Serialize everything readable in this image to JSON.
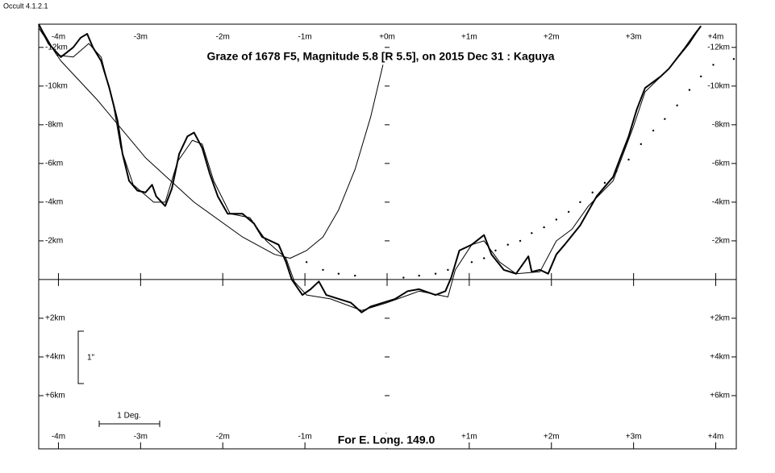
{
  "app_title": "Occult 4.1.2.1",
  "chart_data": {
    "type": "line",
    "title": "Graze of  1678 F5,  Magnitude 5.8  [R 5.5],  on 2015 Dec 31  :  Kaguya",
    "footer": "For E. Long. 149.0",
    "scale_arcsec_label": "1\"",
    "scale_degree_label": "1 Deg.",
    "xlim": [
      -4.24,
      4.25
    ],
    "ylim": [
      -13.2,
      8.75
    ],
    "y_inverted": true,
    "xticks": [
      {
        "value": -4,
        "label": "-4m"
      },
      {
        "value": -3,
        "label": "-3m"
      },
      {
        "value": -2,
        "label": "-2m"
      },
      {
        "value": -1,
        "label": "-1m"
      },
      {
        "value": 0,
        "label": "+0m"
      },
      {
        "value": 1,
        "label": "+1m"
      },
      {
        "value": 2,
        "label": "+2m"
      },
      {
        "value": 3,
        "label": "+3m"
      },
      {
        "value": 4,
        "label": "+4m"
      }
    ],
    "yticks": [
      {
        "value": -12,
        "label": "-12km"
      },
      {
        "value": -10,
        "label": "-10km"
      },
      {
        "value": -8,
        "label": "-8km"
      },
      {
        "value": -6,
        "label": "-6km"
      },
      {
        "value": -4,
        "label": "-4km"
      },
      {
        "value": -2,
        "label": "-2km"
      },
      {
        "value": 2,
        "label": "+2km"
      },
      {
        "value": 4,
        "label": "+4km"
      },
      {
        "value": 6,
        "label": "+6km"
      }
    ],
    "series": [
      {
        "color": "#000000",
        "line_width": 2,
        "x": [
          -4.24,
          -4.12,
          -3.97,
          -3.82,
          -3.73,
          -3.65,
          -3.58,
          -3.48,
          -3.38,
          -3.28,
          -3.22,
          -3.14,
          -3.04,
          -2.94,
          -2.86,
          -2.81,
          -2.7,
          -2.62,
          -2.53,
          -2.43,
          -2.35,
          -2.25,
          -2.16,
          -2.06,
          -1.94,
          -1.76,
          -1.62,
          -1.52,
          -1.32,
          -1.23,
          -1.16,
          -1.03,
          -0.93,
          -0.83,
          -0.74,
          -0.59,
          -0.44,
          -0.31,
          -0.2,
          -0.05,
          0.1,
          0.25,
          0.39,
          0.59,
          0.71,
          0.78,
          0.88,
          1.03,
          1.18,
          1.27,
          1.42,
          1.57,
          1.67,
          1.72,
          1.76,
          1.86,
          1.96,
          2.06,
          2.16,
          2.35,
          2.55,
          2.75,
          2.84,
          2.94,
          3.04,
          3.14,
          3.33,
          3.43,
          3.63,
          3.73,
          3.82
        ],
        "values": [
          -13.2,
          -12.2,
          -11.5,
          -12.0,
          -12.5,
          -12.7,
          -12.0,
          -11.3,
          -9.9,
          -8.2,
          -6.5,
          -5.1,
          -4.6,
          -4.5,
          -4.9,
          -4.3,
          -3.8,
          -4.7,
          -6.5,
          -7.4,
          -7.6,
          -6.8,
          -5.5,
          -4.3,
          -3.4,
          -3.4,
          -2.9,
          -2.2,
          -1.8,
          -0.9,
          0,
          0.8,
          0.5,
          0.1,
          0.8,
          1.0,
          1.2,
          1.7,
          1.4,
          1.2,
          1.0,
          0.6,
          0.5,
          0.8,
          0.6,
          -0.1,
          -1.5,
          -1.8,
          -2.3,
          -1.3,
          -0.5,
          -0.3,
          -0.9,
          -1.2,
          -0.4,
          -0.5,
          -0.3,
          -1.3,
          -1.8,
          -2.8,
          -4.3,
          -5.3,
          -6.3,
          -7.4,
          -8.8,
          -9.9,
          -10.5,
          -10.9,
          -12.0,
          -12.6,
          -13.1
        ]
      },
      {
        "color": "#000000",
        "line_width": 1,
        "x": [
          -4.24,
          -4.02,
          -3.82,
          -3.63,
          -3.48,
          -3.33,
          -3.24,
          -3.09,
          -2.84,
          -2.7,
          -2.55,
          -2.37,
          -2.25,
          -2.11,
          -1.91,
          -1.67,
          -1.47,
          -1.23,
          -1.13,
          -0.98,
          -0.69,
          -0.31,
          0,
          0.39,
          0.74,
          0.83,
          1.03,
          1.18,
          1.37,
          1.57,
          1.86,
          2.06,
          2.25,
          2.45,
          2.75,
          2.99,
          3.14,
          3.43,
          3.68,
          3.82
        ],
        "values": [
          -13.2,
          -11.6,
          -11.5,
          -12.2,
          -11.5,
          -9.0,
          -6.8,
          -4.9,
          -4.0,
          -4.0,
          -6.1,
          -7.2,
          -7.0,
          -5.1,
          -3.4,
          -3.2,
          -2.0,
          -1.1,
          0.1,
          0.8,
          1.0,
          1.6,
          1.2,
          0.6,
          0.9,
          -0.5,
          -1.8,
          -2.0,
          -0.9,
          -0.3,
          -0.4,
          -2.0,
          -2.6,
          -3.8,
          -5.1,
          -7.8,
          -9.7,
          -10.9,
          -12.2,
          -13.1
        ]
      },
      {
        "color": "#000000",
        "line_width": 1,
        "x": [
          -4.24,
          -3.97,
          -3.53,
          -2.94,
          -2.35,
          -1.76,
          -1.37,
          -1.18,
          -0.98,
          -0.78,
          -0.59,
          -0.39,
          -0.2,
          -0.05
        ],
        "values": [
          -13.0,
          -11.3,
          -9.3,
          -6.3,
          -4.0,
          -2.2,
          -1.3,
          -1.1,
          -1.5,
          -2.2,
          -3.6,
          -5.7,
          -8.4,
          -11.1
        ]
      },
      {
        "color": "#000000",
        "marker": "dot",
        "x": [
          -0.98,
          -0.78,
          -0.59,
          -0.39,
          0.2,
          0.39,
          0.59,
          0.74,
          1.03,
          1.18,
          1.32,
          1.47,
          1.62,
          1.76,
          1.91,
          2.06,
          2.21,
          2.35,
          2.5,
          2.65,
          2.79,
          2.94,
          3.09,
          3.24,
          3.38,
          3.53,
          3.68,
          3.82,
          3.97,
          4.22
        ],
        "values": [
          -0.9,
          -0.5,
          -0.3,
          -0.2,
          -0.1,
          -0.2,
          -0.3,
          -0.5,
          -0.9,
          -1.1,
          -1.5,
          -1.8,
          -2.0,
          -2.4,
          -2.7,
          -3.1,
          -3.5,
          -4.0,
          -4.5,
          -5.0,
          -5.6,
          -6.2,
          -7.0,
          -7.7,
          -8.3,
          -9.0,
          -9.8,
          -10.5,
          -11.1,
          -11.4
        ]
      }
    ]
  }
}
